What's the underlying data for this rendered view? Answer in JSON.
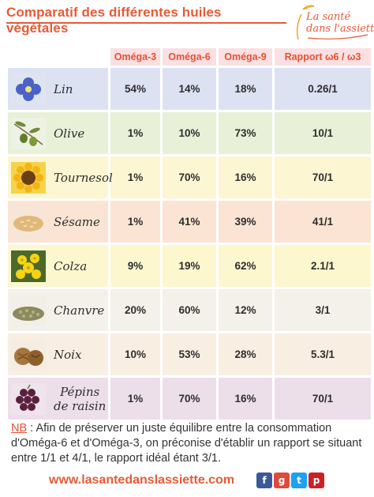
{
  "title": "Comparatif des différentes huiles végétales",
  "logo": {
    "line1": "La santé",
    "line2": "dans l'assiette"
  },
  "colors": {
    "accent": "#e85a35",
    "header_bg": "#fbe0e3"
  },
  "table": {
    "headers": [
      "Oméga-3",
      "Oméga-6",
      "Oméga-9",
      "Rapport ω6 / ω3"
    ],
    "rows": [
      {
        "name": "Lin",
        "icon": "flax-flower-icon",
        "omega3": "54%",
        "omega6": "14%",
        "omega9": "18%",
        "ratio": "0.26/1"
      },
      {
        "name": "Olive",
        "icon": "olive-branch-icon",
        "omega3": "1%",
        "omega6": "10%",
        "omega9": "73%",
        "ratio": "10/1"
      },
      {
        "name": "Tournesol",
        "icon": "sunflower-icon",
        "omega3": "1%",
        "omega6": "70%",
        "omega9": "16%",
        "ratio": "70/1"
      },
      {
        "name": "Sésame",
        "icon": "sesame-seeds-icon",
        "omega3": "1%",
        "omega6": "41%",
        "omega9": "39%",
        "ratio": "41/1"
      },
      {
        "name": "Colza",
        "icon": "rapeseed-flower-icon",
        "omega3": "9%",
        "omega6": "19%",
        "omega9": "62%",
        "ratio": "2.1/1"
      },
      {
        "name": "Chanvre",
        "icon": "hemp-seeds-icon",
        "omega3": "20%",
        "omega6": "60%",
        "omega9": "12%",
        "ratio": "3/1"
      },
      {
        "name": "Noix",
        "icon": "walnut-icon",
        "omega3": "10%",
        "omega6": "53%",
        "omega9": "28%",
        "ratio": "5.3/1"
      },
      {
        "name": "Pépins de raisin",
        "name_line1": "Pépins",
        "name_line2": "de raisin",
        "icon": "grapes-icon",
        "omega3": "1%",
        "omega6": "70%",
        "omega9": "16%",
        "ratio": "70/1"
      }
    ]
  },
  "note": {
    "label": "NB",
    "text": " : Afin de préserver un juste équilibre entre la consommation d'Oméga-6 et d'Oméga-3, on préconise d'établir un rapport se situant entre 1/1 et 4/1, le rapport idéal étant 3/1."
  },
  "footer": {
    "url": "www.lasantedanslassiette.com",
    "socials": [
      {
        "icon": "facebook-icon",
        "label": "f",
        "color": "#3b5998"
      },
      {
        "icon": "google-plus-icon",
        "label": "g",
        "color": "#dd4b39"
      },
      {
        "icon": "twitter-icon",
        "label": "t",
        "color": "#1da1f2"
      },
      {
        "icon": "pinterest-icon",
        "label": "p",
        "color": "#cb2027"
      }
    ]
  }
}
